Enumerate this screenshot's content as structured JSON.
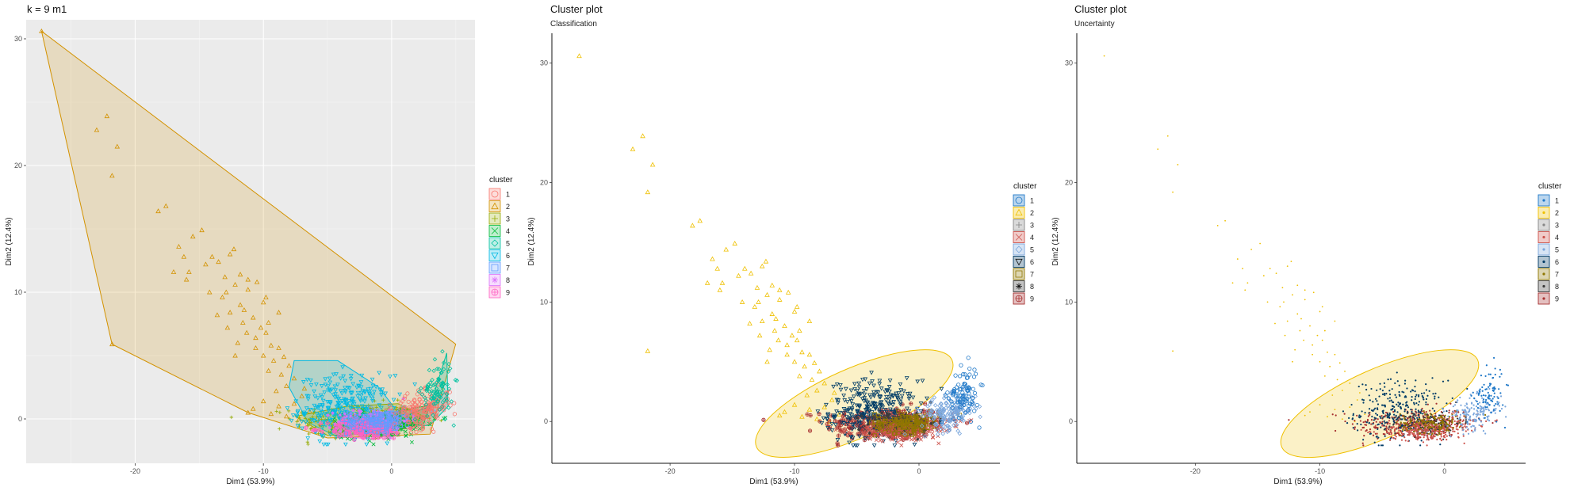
{
  "colors": {
    "panel_bg": "#ebebeb",
    "grid": "#ffffff",
    "factoextra_palette": [
      "#F8766D",
      "#D39200",
      "#93AA00",
      "#00BA38",
      "#00C19F",
      "#00B9E3",
      "#619CFF",
      "#DB72FB",
      "#FF61C3"
    ],
    "mclust_palette": [
      "#1F78C8",
      "#EFC000",
      "#868686",
      "#CD534C",
      "#7AA6DC",
      "#003C67",
      "#8F7700",
      "#3B3B3B",
      "#A73030"
    ]
  },
  "chart_data": [
    {
      "type": "scatter",
      "id": "kmeans",
      "title": "k = 9 m1",
      "subtitle": "",
      "xlabel": "Dim1 (53.9%)",
      "ylabel": "Dim2 (12.4%)",
      "xlim": [
        -28.5,
        6.5
      ],
      "ylim": [
        -3.5,
        31.5
      ],
      "xticks": [
        -20,
        -10,
        0
      ],
      "yticks": [
        0,
        10,
        20,
        30
      ],
      "xtick_labels": [
        "-20",
        "-10",
        "0"
      ],
      "ytick_labels": [
        "0",
        "10",
        "20",
        "30"
      ],
      "grid": true,
      "legend": {
        "title": "cluster",
        "placement": "right",
        "entries": [
          "1",
          "2",
          "3",
          "4",
          "5",
          "6",
          "7",
          "8",
          "9"
        ]
      },
      "hulls": [
        {
          "cluster": 2,
          "points": [
            [
              -27.3,
              30.6
            ],
            [
              -21.8,
              5.9
            ],
            [
              -11.2,
              0.5
            ],
            [
              -5.0,
              -1.5
            ],
            [
              3.0,
              -1.2
            ],
            [
              5.0,
              5.9
            ]
          ]
        },
        {
          "cluster": 6,
          "points": [
            [
              -7.6,
              4.6
            ],
            [
              -4.2,
              4.6
            ],
            [
              -1.0,
              2.5
            ],
            [
              0.5,
              0.5
            ],
            [
              -1.0,
              -0.5
            ],
            [
              -4.0,
              -1.5
            ],
            [
              -6.5,
              -0.3
            ],
            [
              -8.0,
              2.5
            ]
          ]
        },
        {
          "cluster": 5,
          "points": [
            [
              1.0,
              0.2
            ],
            [
              3.0,
              1.0
            ],
            [
              4.3,
              5.2
            ],
            [
              4.4,
              1.0
            ],
            [
              3.0,
              -0.5
            ],
            [
              1.2,
              -0.6
            ]
          ]
        },
        {
          "cluster": 1,
          "points": [
            [
              -0.5,
              0.8
            ],
            [
              2.0,
              0.6
            ],
            [
              4.5,
              2.3
            ],
            [
              4.0,
              1.0
            ],
            [
              1.5,
              -0.8
            ],
            [
              -1.0,
              -0.7
            ]
          ]
        },
        {
          "cluster": 4,
          "points": [
            [
              -3.5,
              0.0
            ],
            [
              0.0,
              0.5
            ],
            [
              3.0,
              1.1
            ],
            [
              2.5,
              -0.4
            ],
            [
              -1.5,
              -0.9
            ],
            [
              -3.5,
              -0.8
            ]
          ]
        },
        {
          "cluster": 3,
          "points": [
            [
              -7.5,
              0.2
            ],
            [
              -3.5,
              1.0
            ],
            [
              0.5,
              1.2
            ],
            [
              2.5,
              0.2
            ],
            [
              0.0,
              -1.2
            ],
            [
              -5.0,
              -1.3
            ]
          ]
        },
        {
          "cluster": 8,
          "points": [
            [
              -3.0,
              0.2
            ],
            [
              -1.0,
              0.6
            ],
            [
              0.5,
              0.0
            ],
            [
              -1.0,
              -1.0
            ],
            [
              -3.0,
              -0.6
            ]
          ]
        },
        {
          "cluster": 7,
          "points": [
            [
              -2.5,
              0.4
            ],
            [
              0.5,
              0.6
            ],
            [
              1.5,
              0.0
            ],
            [
              0.0,
              -0.8
            ],
            [
              -2.0,
              -0.5
            ]
          ]
        },
        {
          "cluster": 9,
          "points": [
            [
              -4.5,
              -0.3
            ],
            [
              -1.5,
              0.2
            ],
            [
              1.0,
              -0.3
            ],
            [
              -1.0,
              -1.6
            ],
            [
              -4.0,
              -1.4
            ]
          ]
        }
      ]
    },
    {
      "type": "scatter",
      "id": "classification",
      "title": "Cluster plot",
      "subtitle": "Classification",
      "xlabel": "Dim1 (53.9%)",
      "ylabel": "Dim2 (12.4%)",
      "xlim": [
        -29.5,
        6.5
      ],
      "ylim": [
        -3.5,
        32.5
      ],
      "xticks": [
        -20,
        -10,
        0
      ],
      "yticks": [
        0,
        10,
        20,
        30
      ],
      "xtick_labels": [
        "-20",
        "-10",
        "0"
      ],
      "ytick_labels": [
        "0",
        "10",
        "20",
        "30"
      ],
      "grid": false,
      "legend": {
        "title": "cluster",
        "placement": "right",
        "entries": [
          "1",
          "2",
          "3",
          "4",
          "5",
          "6",
          "7",
          "8",
          "9"
        ]
      },
      "ellipse": {
        "cluster": 2,
        "cx": -5.2,
        "cy": 1.5,
        "rx": 8.6,
        "ry": 2.9,
        "angle_deg": -24
      }
    },
    {
      "type": "scatter",
      "id": "uncertainty",
      "title": "Cluster plot",
      "subtitle": "Uncertainty",
      "xlabel": "Dim1 (53.9%)",
      "ylabel": "Dim2 (12.4%)",
      "xlim": [
        -29.5,
        6.5
      ],
      "ylim": [
        -3.5,
        32.5
      ],
      "xticks": [
        -20,
        -10,
        0
      ],
      "yticks": [
        0,
        10,
        20,
        30
      ],
      "xtick_labels": [
        "-20",
        "-10",
        "0"
      ],
      "ytick_labels": [
        "0",
        "10",
        "20",
        "30"
      ],
      "grid": false,
      "legend": {
        "title": "cluster",
        "placement": "right",
        "entries": [
          "1",
          "2",
          "3",
          "4",
          "5",
          "6",
          "7",
          "8",
          "9"
        ]
      },
      "ellipse": {
        "cluster": 2,
        "cx": -5.2,
        "cy": 1.5,
        "rx": 8.6,
        "ry": 2.9,
        "angle_deg": -24
      }
    }
  ],
  "sparse_points": [
    [
      -27.3,
      30.6
    ],
    [
      -23.0,
      22.8
    ],
    [
      -22.2,
      23.9
    ],
    [
      -21.4,
      21.5
    ],
    [
      -21.8,
      19.2
    ],
    [
      -18.2,
      16.4
    ],
    [
      -17.6,
      16.8
    ],
    [
      -21.8,
      5.9
    ],
    [
      -16.6,
      13.6
    ],
    [
      -16.2,
      12.8
    ],
    [
      -15.5,
      14.4
    ],
    [
      -14.8,
      14.9
    ],
    [
      -14.0,
      12.8
    ],
    [
      -14.5,
      12.2
    ],
    [
      -15.8,
      11.6
    ],
    [
      -13.5,
      12.4
    ],
    [
      -12.6,
      13.0
    ],
    [
      -11.8,
      11.4
    ],
    [
      -11.2,
      10.2
    ],
    [
      -12.2,
      10.6
    ],
    [
      -13.2,
      9.6
    ],
    [
      -11.8,
      9.0
    ],
    [
      -12.6,
      8.4
    ],
    [
      -10.8,
      8.0
    ],
    [
      -11.6,
      7.6
    ],
    [
      -10.2,
      7.2
    ],
    [
      -12.8,
      7.2
    ],
    [
      -9.8,
      6.8
    ],
    [
      -10.6,
      6.4
    ],
    [
      -12.0,
      6.0
    ],
    [
      -9.4,
      5.8
    ],
    [
      -8.8,
      5.6
    ],
    [
      -10.0,
      5.0
    ],
    [
      -9.2,
      4.6
    ],
    [
      -8.4,
      4.9
    ],
    [
      -8.0,
      4.2
    ],
    [
      -8.6,
      3.5
    ],
    [
      -9.6,
      3.8
    ],
    [
      -7.6,
      3.2
    ],
    [
      -8.2,
      2.6
    ],
    [
      -9.0,
      2.2
    ],
    [
      -7.0,
      1.8
    ],
    [
      -7.6,
      1.2
    ],
    [
      -8.8,
      1.0
    ],
    [
      -10.0,
      1.4
    ],
    [
      -10.8,
      0.8
    ],
    [
      -11.2,
      0.5
    ],
    [
      -9.4,
      0.4
    ],
    [
      -8.2,
      0.2
    ],
    [
      -7.2,
      0.0
    ],
    [
      -6.4,
      0.6
    ],
    [
      -6.8,
      2.4
    ],
    [
      -11.2,
      11.0
    ],
    [
      -10.5,
      10.8
    ],
    [
      -9.8,
      9.6
    ],
    [
      -13.0,
      11.2
    ],
    [
      -16.0,
      11.0
    ],
    [
      -12.3,
      13.4
    ],
    [
      -11.5,
      8.6
    ],
    [
      -10.0,
      9.2
    ],
    [
      -17.0,
      11.6
    ],
    [
      -8.8,
      8.4
    ],
    [
      -9.6,
      7.6
    ],
    [
      -10.6,
      5.6
    ],
    [
      -13.6,
      8.2
    ],
    [
      -12.2,
      5.0
    ],
    [
      -14.2,
      10.0
    ],
    [
      -12.9,
      10.0
    ],
    [
      -11.3,
      6.8
    ]
  ],
  "dense_cloud": [
    {
      "cluster": 3,
      "cx": -2.8,
      "cy": -0.2,
      "sx": 2.4,
      "sy": 0.7,
      "n": 260
    },
    {
      "cluster": 6,
      "cx": -3.6,
      "cy": 0.8,
      "sx": 1.8,
      "sy": 1.3,
      "n": 300
    },
    {
      "cluster": 4,
      "cx": -0.6,
      "cy": -0.5,
      "sx": 1.6,
      "sy": 0.5,
      "n": 240
    },
    {
      "cluster": 8,
      "cx": -1.4,
      "cy": -0.2,
      "sx": 1.4,
      "sy": 0.5,
      "n": 160
    },
    {
      "cluster": 9,
      "cx": -2.0,
      "cy": -0.8,
      "sx": 1.5,
      "sy": 0.4,
      "n": 160
    },
    {
      "cluster": 7,
      "cx": -0.9,
      "cy": -0.1,
      "sx": 1.3,
      "sy": 0.45,
      "n": 140
    },
    {
      "cluster": 1,
      "cx": 2.4,
      "cy": 0.4,
      "sx": 1.1,
      "sy": 0.7,
      "n": 160
    },
    {
      "cluster": 5,
      "cx": 3.6,
      "cy": 1.8,
      "sx": 0.6,
      "sy": 1.1,
      "n": 90
    }
  ]
}
